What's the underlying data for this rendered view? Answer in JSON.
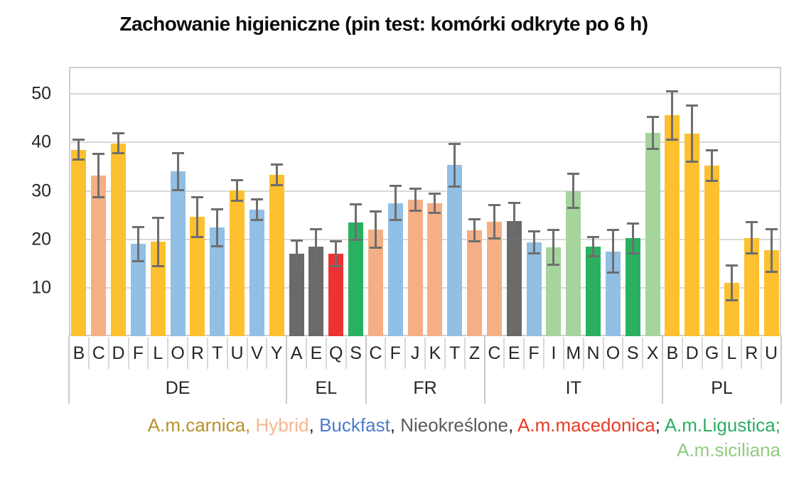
{
  "chart_data": {
    "type": "bar",
    "title": "Zachowanie higieniczne (pin test: komórki odkryte po 6 h)",
    "xlabel": "",
    "ylabel": "",
    "ylim": [
      0,
      55.6
    ],
    "y_ticks": [
      10,
      20,
      30,
      40,
      50
    ],
    "grid": true,
    "error_bars": true,
    "breeds": {
      "carnica": {
        "name": "A.m.carnica",
        "bar_color": "#FDC02F"
      },
      "hybrid": {
        "name": "Hybrid",
        "bar_color": "#F5AF85"
      },
      "buckfast": {
        "name": "Buckfast",
        "bar_color": "#92BFE4"
      },
      "nieokreslone": {
        "name": "Nieokreślone",
        "bar_color": "#6A6A6A"
      },
      "macedonica": {
        "name": "A.m.macedonica",
        "bar_color": "#EE3233"
      },
      "ligustica": {
        "name": "A.m.Ligustica",
        "bar_color": "#29B15F"
      },
      "siciliana": {
        "name": "A.m.siciliana",
        "bar_color": "#A5D49D"
      }
    },
    "groups": [
      {
        "label": "DE",
        "bars": [
          {
            "letter": "B",
            "value": 38.5,
            "err": 2.3,
            "breed": "carnica"
          },
          {
            "letter": "C",
            "value": 33.2,
            "err": 4.7,
            "breed": "hybrid"
          },
          {
            "letter": "D",
            "value": 39.8,
            "err": 2.3,
            "breed": "carnica"
          },
          {
            "letter": "F",
            "value": 19.0,
            "err": 3.8,
            "breed": "buckfast"
          },
          {
            "letter": "L",
            "value": 19.5,
            "err": 5.2,
            "breed": "carnica"
          },
          {
            "letter": "O",
            "value": 34.0,
            "err": 4.0,
            "breed": "buckfast"
          },
          {
            "letter": "R",
            "value": 24.6,
            "err": 4.3,
            "breed": "carnica"
          },
          {
            "letter": "T",
            "value": 22.4,
            "err": 4.0,
            "breed": "buckfast"
          },
          {
            "letter": "U",
            "value": 30.1,
            "err": 2.3,
            "breed": "carnica"
          },
          {
            "letter": "V",
            "value": 26.1,
            "err": 2.4,
            "breed": "buckfast"
          },
          {
            "letter": "Y",
            "value": 33.3,
            "err": 2.4,
            "breed": "carnica"
          }
        ]
      },
      {
        "label": "EL",
        "bars": [
          {
            "letter": "A",
            "value": 17.0,
            "err": 3.0,
            "breed": "nieokreslone"
          },
          {
            "letter": "E",
            "value": 18.5,
            "err": 3.8,
            "breed": "nieokreslone"
          },
          {
            "letter": "Q",
            "value": 17.0,
            "err": 2.8,
            "breed": "macedonica"
          },
          {
            "letter": "S",
            "value": 23.5,
            "err": 3.9,
            "breed": "ligustica"
          }
        ]
      },
      {
        "label": "FR",
        "bars": [
          {
            "letter": "C",
            "value": 22.0,
            "err": 4.0,
            "breed": "hybrid"
          },
          {
            "letter": "F",
            "value": 27.5,
            "err": 3.7,
            "breed": "buckfast"
          },
          {
            "letter": "J",
            "value": 28.2,
            "err": 2.5,
            "breed": "hybrid"
          },
          {
            "letter": "K",
            "value": 27.4,
            "err": 2.2,
            "breed": "hybrid"
          },
          {
            "letter": "T",
            "value": 35.3,
            "err": 4.6,
            "breed": "buckfast"
          },
          {
            "letter": "Z",
            "value": 21.9,
            "err": 2.5,
            "breed": "hybrid"
          }
        ]
      },
      {
        "label": "IT",
        "bars": [
          {
            "letter": "C",
            "value": 23.6,
            "err": 3.7,
            "breed": "hybrid"
          },
          {
            "letter": "E",
            "value": 23.8,
            "err": 4.0,
            "breed": "nieokreslone"
          },
          {
            "letter": "F",
            "value": 19.3,
            "err": 2.5,
            "breed": "buckfast"
          },
          {
            "letter": "I",
            "value": 18.3,
            "err": 3.8,
            "breed": "siciliana"
          },
          {
            "letter": "M",
            "value": 30.0,
            "err": 3.7,
            "breed": "siciliana"
          },
          {
            "letter": "N",
            "value": 18.5,
            "err": 2.2,
            "breed": "ligustica"
          },
          {
            "letter": "O",
            "value": 17.5,
            "err": 4.6,
            "breed": "buckfast"
          },
          {
            "letter": "S",
            "value": 20.2,
            "err": 3.3,
            "breed": "ligustica"
          },
          {
            "letter": "X",
            "value": 42.0,
            "err": 3.5,
            "breed": "siciliana"
          }
        ]
      },
      {
        "label": "PL",
        "bars": [
          {
            "letter": "B",
            "value": 45.6,
            "err": 5.2,
            "breed": "carnica"
          },
          {
            "letter": "D",
            "value": 41.8,
            "err": 6.0,
            "breed": "carnica"
          },
          {
            "letter": "G",
            "value": 35.2,
            "err": 3.4,
            "breed": "carnica"
          },
          {
            "letter": "L",
            "value": 11.0,
            "err": 3.8,
            "breed": "carnica"
          },
          {
            "letter": "R",
            "value": 20.3,
            "err": 3.4,
            "breed": "carnica"
          },
          {
            "letter": "U",
            "value": 17.7,
            "err": 4.6,
            "breed": "carnica"
          }
        ]
      },
      {
        "label": "",
        "bars": []
      }
    ],
    "legend": {
      "position": "bottom-right",
      "line1": [
        {
          "label": "A.m.carnica",
          "color": "#B8922D",
          "sep": ", ",
          "sep_color": "#B8922D"
        },
        {
          "label": "Hybrid",
          "color": "#F5B68F",
          "sep": ", ",
          "sep_color": "#262626"
        },
        {
          "label": "Buckfast",
          "color": "#4D7BCB",
          "sep": ", ",
          "sep_color": "#262626"
        },
        {
          "label": "Nieokreślone",
          "color": "#595959",
          "sep": ", ",
          "sep_color": "#262626"
        },
        {
          "label": "A.m.macedonica",
          "color": "#E93A23",
          "sep": "; ",
          "sep_color": "#262626"
        },
        {
          "label": "A.m.Ligustica",
          "color": "#2BAD62",
          "sep": ";",
          "sep_color": "#2BAD62"
        }
      ],
      "line2": [
        {
          "label": "A.m.siciliana",
          "color": "#92CC80",
          "sep": "",
          "sep_color": "#92CC80"
        }
      ]
    },
    "colors": {
      "gridline": "#D9D9D9",
      "plot_border": "#D0CECE",
      "error_bar": "#6E6E6E",
      "axis_text": "#262626",
      "group_line": "#C9C9C9"
    }
  }
}
